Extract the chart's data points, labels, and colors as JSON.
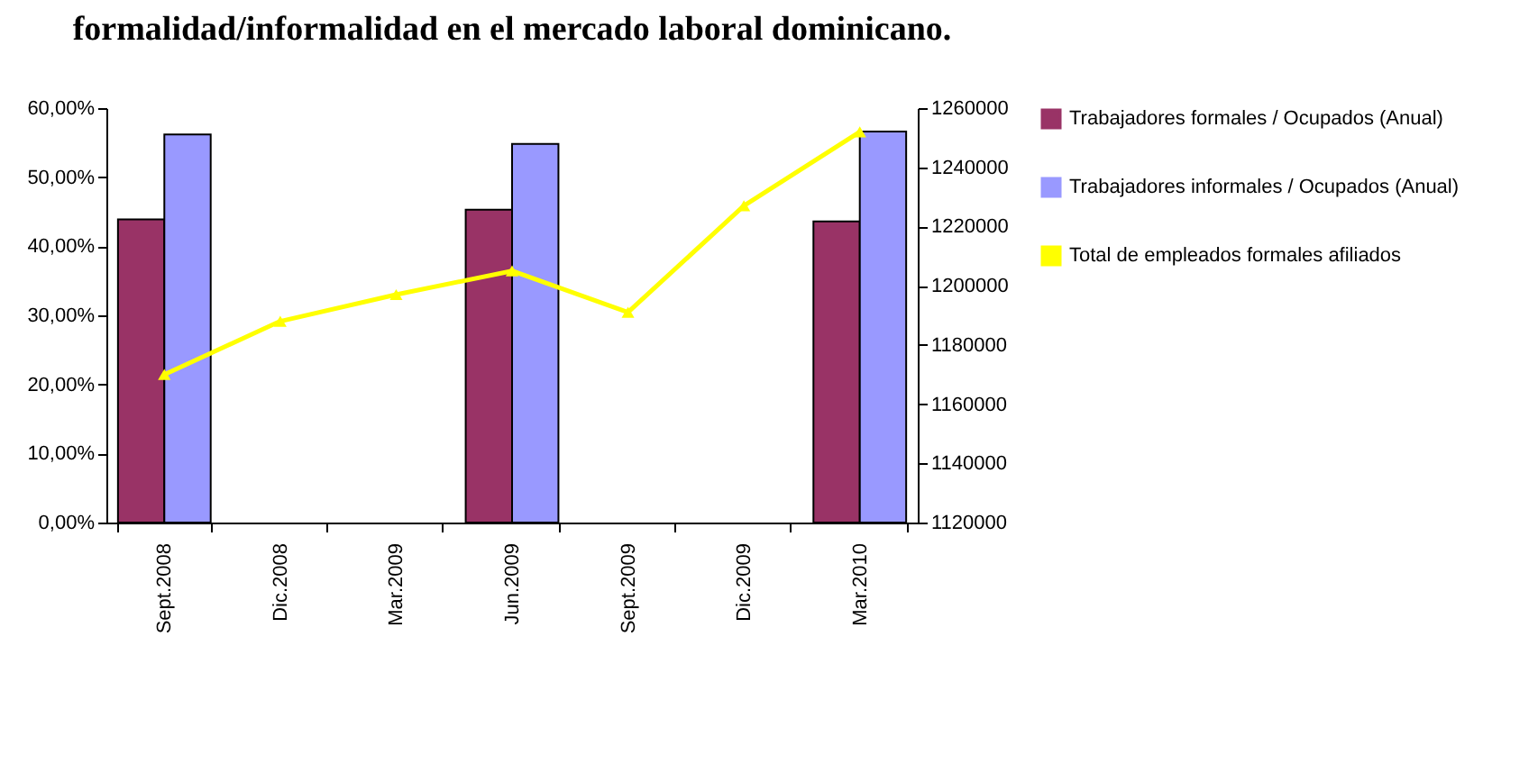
{
  "chart_data": {
    "type": "bar",
    "title": "formalidad/informalidad en el mercado laboral dominicano.",
    "categories": [
      "Sept.2008",
      "Dic.2008",
      "Mar.2009",
      "Jun.2009",
      "Sept.2009",
      "Dic.2009",
      "Mar.2010"
    ],
    "series": [
      {
        "name": "Trabajadores formales / Ocupados (Anual)",
        "color": "#993366",
        "values": [
          43.9,
          null,
          null,
          45.3,
          null,
          null,
          43.6
        ]
      },
      {
        "name": "Trabajadores informales / Ocupados (Anual)",
        "color": "#9999ff",
        "values": [
          56.2,
          null,
          null,
          54.8,
          null,
          null,
          56.6
        ]
      },
      {
        "name": "Total de empleados formales afiliados",
        "type": "line",
        "axis": "y2",
        "color": "#ffff00",
        "values": [
          1170000,
          1188000,
          1197000,
          1205000,
          1191000,
          1227000,
          1252000
        ]
      }
    ],
    "ylim": [
      0,
      60
    ],
    "yticks": [
      {
        "value": 0,
        "label": "0,00%"
      },
      {
        "value": 10,
        "label": "10,00%"
      },
      {
        "value": 20,
        "label": "20,00%"
      },
      {
        "value": 30,
        "label": "30,00%"
      },
      {
        "value": 40,
        "label": "40,00%"
      },
      {
        "value": 50,
        "label": "50,00%"
      },
      {
        "value": 60,
        "label": "60,00%"
      }
    ],
    "y2lim": [
      1120000,
      1260000
    ],
    "y2ticks": [
      1120000,
      1140000,
      1160000,
      1180000,
      1200000,
      1220000,
      1240000,
      1260000
    ],
    "marker": "triangle",
    "grid": false,
    "legend": "right"
  }
}
